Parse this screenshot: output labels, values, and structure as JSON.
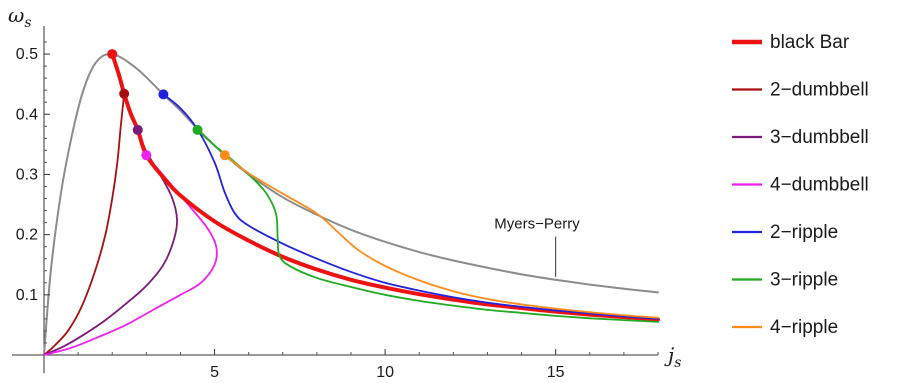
{
  "chart_data": {
    "type": "line",
    "xlabel": "j",
    "xlabel_sub": "s",
    "ylabel": "ω",
    "ylabel_sub": "s",
    "xlim": [
      0,
      18
    ],
    "ylim": [
      0,
      0.54
    ],
    "x_ticks": [
      5,
      10,
      15
    ],
    "y_ticks": [
      0.1,
      0.2,
      0.3,
      0.4,
      0.5
    ],
    "x_tick_labels": [
      "5",
      "10",
      "15"
    ],
    "y_tick_labels": [
      "0.1",
      "0.2",
      "0.3",
      "0.4",
      "0.5"
    ],
    "annotation": {
      "text": "Myers−Perry",
      "x": 15.0,
      "y": 0.13,
      "label_x": 13.2,
      "label_y": 0.21
    },
    "legend_position": "right",
    "series": [
      {
        "name": "Myers−Perry",
        "in_legend": false,
        "color": "#8c8c8c",
        "width": 2,
        "points": [
          [
            0,
            0
          ],
          [
            0.2,
            0.14
          ],
          [
            0.5,
            0.27
          ],
          [
            0.8,
            0.36
          ],
          [
            1.1,
            0.43
          ],
          [
            1.4,
            0.475
          ],
          [
            1.7,
            0.496
          ],
          [
            2.0,
            0.5
          ],
          [
            2.3,
            0.493
          ],
          [
            2.8,
            0.472
          ],
          [
            3.5,
            0.433
          ],
          [
            4.0,
            0.406
          ],
          [
            4.5,
            0.376
          ],
          [
            5.3,
            0.332
          ],
          [
            6,
            0.3
          ],
          [
            7,
            0.262
          ],
          [
            8,
            0.233
          ],
          [
            9,
            0.208
          ],
          [
            10,
            0.188
          ],
          [
            11,
            0.171
          ],
          [
            12,
            0.157
          ],
          [
            13,
            0.145
          ],
          [
            14,
            0.134
          ],
          [
            15,
            0.125
          ],
          [
            16,
            0.117
          ],
          [
            17,
            0.11
          ],
          [
            18,
            0.104
          ]
        ]
      },
      {
        "name": "black Bar",
        "in_legend": true,
        "color": "#ee1111",
        "width": 4,
        "points": [
          [
            2.0,
            0.5
          ],
          [
            2.2,
            0.465
          ],
          [
            2.35,
            0.434
          ],
          [
            2.55,
            0.4
          ],
          [
            2.75,
            0.374
          ],
          [
            3.0,
            0.332
          ],
          [
            3.5,
            0.295
          ],
          [
            4.0,
            0.265
          ],
          [
            5,
            0.222
          ],
          [
            6,
            0.19
          ],
          [
            7,
            0.163
          ],
          [
            8,
            0.142
          ],
          [
            9,
            0.125
          ],
          [
            10,
            0.112
          ],
          [
            11,
            0.101
          ],
          [
            12,
            0.092
          ],
          [
            13,
            0.084
          ],
          [
            14,
            0.078
          ],
          [
            15,
            0.072
          ],
          [
            16,
            0.067
          ],
          [
            17,
            0.063
          ],
          [
            18,
            0.059
          ]
        ]
      },
      {
        "name": "2−dumbbell",
        "in_legend": true,
        "color": "#a80e0e",
        "width": 1.8,
        "points": [
          [
            0,
            0
          ],
          [
            0.3,
            0.015
          ],
          [
            0.7,
            0.04
          ],
          [
            1.1,
            0.08
          ],
          [
            1.5,
            0.14
          ],
          [
            1.8,
            0.2
          ],
          [
            2.0,
            0.26
          ],
          [
            2.15,
            0.32
          ],
          [
            2.25,
            0.38
          ],
          [
            2.35,
            0.434
          ]
        ]
      },
      {
        "name": "3−dumbbell",
        "in_legend": true,
        "color": "#7b1a7b",
        "width": 1.8,
        "points": [
          [
            0,
            0
          ],
          [
            0.6,
            0.015
          ],
          [
            1.2,
            0.035
          ],
          [
            1.8,
            0.058
          ],
          [
            2.4,
            0.085
          ],
          [
            3.0,
            0.115
          ],
          [
            3.5,
            0.15
          ],
          [
            3.8,
            0.19
          ],
          [
            3.9,
            0.225
          ],
          [
            3.75,
            0.262
          ],
          [
            3.4,
            0.3
          ],
          [
            3.0,
            0.338
          ],
          [
            2.75,
            0.374
          ]
        ]
      },
      {
        "name": "4−dumbbell",
        "in_legend": true,
        "color": "#ee22ee",
        "width": 1.8,
        "points": [
          [
            0,
            0
          ],
          [
            0.8,
            0.012
          ],
          [
            1.6,
            0.03
          ],
          [
            2.4,
            0.05
          ],
          [
            3.2,
            0.075
          ],
          [
            4.0,
            0.1
          ],
          [
            4.6,
            0.12
          ],
          [
            5.0,
            0.15
          ],
          [
            5.05,
            0.18
          ],
          [
            4.8,
            0.21
          ],
          [
            4.3,
            0.245
          ],
          [
            3.7,
            0.285
          ],
          [
            3.25,
            0.315
          ],
          [
            3.0,
            0.332
          ]
        ]
      },
      {
        "name": "2−ripple",
        "in_legend": true,
        "color": "#2222dd",
        "width": 1.8,
        "points": [
          [
            3.5,
            0.433
          ],
          [
            4.0,
            0.41
          ],
          [
            4.5,
            0.375
          ],
          [
            5.0,
            0.32
          ],
          [
            5.3,
            0.27
          ],
          [
            5.6,
            0.235
          ],
          [
            6.0,
            0.215
          ],
          [
            7,
            0.185
          ],
          [
            8,
            0.16
          ],
          [
            9,
            0.138
          ],
          [
            10,
            0.12
          ],
          [
            11,
            0.107
          ],
          [
            12,
            0.096
          ],
          [
            13,
            0.087
          ],
          [
            14,
            0.08
          ],
          [
            15,
            0.074
          ],
          [
            16,
            0.069
          ],
          [
            17,
            0.064
          ],
          [
            18,
            0.06
          ]
        ]
      },
      {
        "name": "3−ripple",
        "in_legend": true,
        "color": "#22aa22",
        "width": 1.8,
        "points": [
          [
            4.5,
            0.374
          ],
          [
            5,
            0.348
          ],
          [
            5.5,
            0.325
          ],
          [
            6.0,
            0.3
          ],
          [
            6.5,
            0.27
          ],
          [
            6.8,
            0.235
          ],
          [
            6.85,
            0.195
          ],
          [
            6.9,
            0.165
          ],
          [
            7.2,
            0.148
          ],
          [
            8,
            0.128
          ],
          [
            9,
            0.113
          ],
          [
            10,
            0.1
          ],
          [
            11,
            0.09
          ],
          [
            12,
            0.082
          ],
          [
            13,
            0.075
          ],
          [
            14,
            0.07
          ],
          [
            15,
            0.065
          ],
          [
            16,
            0.061
          ],
          [
            17,
            0.058
          ],
          [
            18,
            0.055
          ]
        ]
      },
      {
        "name": "4−ripple",
        "in_legend": true,
        "color": "#ff8c1a",
        "width": 1.8,
        "points": [
          [
            5.3,
            0.332
          ],
          [
            6,
            0.302
          ],
          [
            7,
            0.268
          ],
          [
            8,
            0.235
          ],
          [
            8.6,
            0.205
          ],
          [
            9.2,
            0.175
          ],
          [
            10,
            0.148
          ],
          [
            11,
            0.124
          ],
          [
            12,
            0.106
          ],
          [
            13,
            0.093
          ],
          [
            14,
            0.084
          ],
          [
            15,
            0.077
          ],
          [
            16,
            0.071
          ],
          [
            17,
            0.066
          ],
          [
            18,
            0.062
          ]
        ]
      }
    ],
    "markers": [
      {
        "x": 2.0,
        "y": 0.5,
        "color": "#ee1111"
      },
      {
        "x": 2.35,
        "y": 0.434,
        "color": "#a80e0e"
      },
      {
        "x": 2.75,
        "y": 0.374,
        "color": "#7b1a7b"
      },
      {
        "x": 3.0,
        "y": 0.332,
        "color": "#ee22ee"
      },
      {
        "x": 3.5,
        "y": 0.433,
        "color": "#2222dd"
      },
      {
        "x": 4.5,
        "y": 0.374,
        "color": "#22aa22"
      },
      {
        "x": 5.3,
        "y": 0.332,
        "color": "#ff8c1a"
      }
    ]
  }
}
